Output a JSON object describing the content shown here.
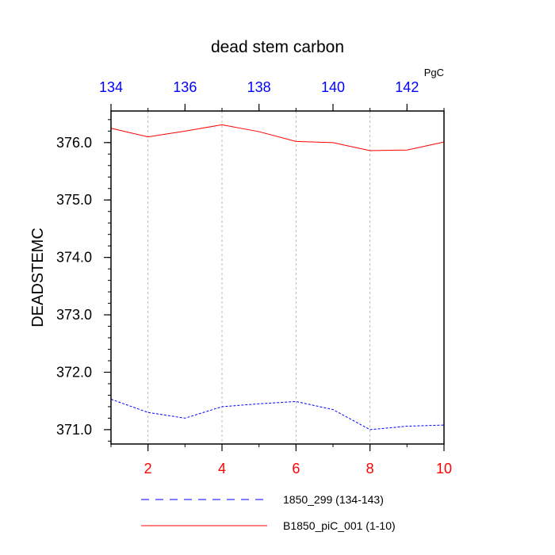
{
  "chart_data": {
    "type": "line",
    "title": "dead stem carbon",
    "units": "PgC",
    "ylabel": "DEADSTEMC",
    "xlabel": "",
    "x_bottom": {
      "range": [
        1,
        10
      ],
      "ticks": [
        2,
        4,
        6,
        8,
        10
      ],
      "tick_labels": [
        "2",
        "4",
        "6",
        "8",
        "10"
      ],
      "color": "#ff0000"
    },
    "x_top": {
      "range": [
        134,
        143
      ],
      "ticks": [
        134,
        136,
        138,
        140,
        142
      ],
      "tick_labels": [
        "134",
        "136",
        "138",
        "140",
        "142"
      ],
      "color": "#0000ff"
    },
    "y": {
      "range": [
        370.75,
        376.55
      ],
      "ticks": [
        371,
        372,
        373,
        374,
        375,
        376
      ],
      "tick_labels": [
        "371.0",
        "372.0",
        "373.0",
        "374.0",
        "375.0",
        "376.0"
      ]
    },
    "grid": "vertical-dashed",
    "legend_placement": "bottom",
    "series": [
      {
        "name": "1850_299 (134-143)",
        "axis": "top",
        "color": "#0000ff",
        "style": "dashed",
        "x": [
          134,
          135,
          136,
          137,
          138,
          139,
          140,
          141,
          142,
          143
        ],
        "values": [
          371.53,
          371.3,
          371.2,
          371.4,
          371.45,
          371.49,
          371.35,
          371.0,
          371.06,
          371.08
        ]
      },
      {
        "name": "B1850_piC_001 (1-10)",
        "axis": "bottom",
        "color": "#ff0000",
        "style": "solid",
        "x": [
          1,
          2,
          3,
          4,
          5,
          6,
          7,
          8,
          9,
          10
        ],
        "values": [
          376.25,
          376.1,
          376.2,
          376.31,
          376.19,
          376.02,
          376.0,
          375.86,
          375.87,
          376.01
        ]
      }
    ]
  }
}
